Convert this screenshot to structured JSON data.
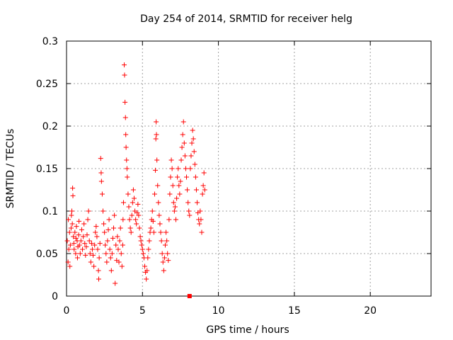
{
  "chart_data": {
    "type": "scatter",
    "title": "Day 254 of 2014, SRMTID for receiver helg",
    "xlabel": "GPS time / hours",
    "ylabel": "SRMTID / TECUs",
    "xlim": [
      0,
      24
    ],
    "ylim": [
      0,
      0.3
    ],
    "x_ticks": [
      0,
      5,
      10,
      15,
      20
    ],
    "x_tick_labels": [
      "0",
      "5",
      "10",
      "15",
      "20"
    ],
    "y_ticks": [
      0,
      0.05,
      0.1,
      0.15,
      0.2,
      0.25,
      0.3
    ],
    "y_tick_labels": [
      "0",
      "0.05",
      "0.1",
      "0.15",
      "0.2",
      "0.25",
      "0.3"
    ],
    "grid": true,
    "marker": "plus",
    "color": "#ff0000",
    "series": [
      {
        "name": "SRMTID",
        "points": [
          [
            0.05,
            0.065
          ],
          [
            0.1,
            0.04
          ],
          [
            0.12,
            0.09
          ],
          [
            0.15,
            0.055
          ],
          [
            0.2,
            0.075
          ],
          [
            0.22,
            0.035
          ],
          [
            0.25,
            0.06
          ],
          [
            0.3,
            0.08
          ],
          [
            0.32,
            0.095
          ],
          [
            0.35,
            0.1
          ],
          [
            0.38,
            0.085
          ],
          [
            0.4,
            0.127
          ],
          [
            0.42,
            0.118
          ],
          [
            0.45,
            0.07
          ],
          [
            0.48,
            0.062
          ],
          [
            0.5,
            0.055
          ],
          [
            0.55,
            0.075
          ],
          [
            0.6,
            0.05
          ],
          [
            0.62,
            0.068
          ],
          [
            0.65,
            0.082
          ],
          [
            0.7,
            0.065
          ],
          [
            0.72,
            0.045
          ],
          [
            0.75,
            0.058
          ],
          [
            0.8,
            0.072
          ],
          [
            0.82,
            0.088
          ],
          [
            0.85,
            0.06
          ],
          [
            0.9,
            0.05
          ],
          [
            0.95,
            0.065
          ],
          [
            1.0,
            0.078
          ],
          [
            1.05,
            0.055
          ],
          [
            1.1,
            0.07
          ],
          [
            1.15,
            0.085
          ],
          [
            1.2,
            0.062
          ],
          [
            1.25,
            0.048
          ],
          [
            1.3,
            0.058
          ],
          [
            1.35,
            0.072
          ],
          [
            1.4,
            0.09
          ],
          [
            1.45,
            0.1
          ],
          [
            1.5,
            0.065
          ],
          [
            1.55,
            0.05
          ],
          [
            1.6,
            0.04
          ],
          [
            1.65,
            0.062
          ],
          [
            1.7,
            0.055
          ],
          [
            1.75,
            0.048
          ],
          [
            1.8,
            0.035
          ],
          [
            1.85,
            0.06
          ],
          [
            1.9,
            0.075
          ],
          [
            1.95,
            0.082
          ],
          [
            2.0,
            0.07
          ],
          [
            2.05,
            0.055
          ],
          [
            2.1,
            0.03
          ],
          [
            2.12,
            0.02
          ],
          [
            2.15,
            0.045
          ],
          [
            2.2,
            0.062
          ],
          [
            2.25,
            0.162
          ],
          [
            2.28,
            0.145
          ],
          [
            2.3,
            0.135
          ],
          [
            2.35,
            0.12
          ],
          [
            2.4,
            0.1
          ],
          [
            2.45,
            0.085
          ],
          [
            2.5,
            0.075
          ],
          [
            2.55,
            0.06
          ],
          [
            2.6,
            0.05
          ],
          [
            2.65,
            0.04
          ],
          [
            2.7,
            0.065
          ],
          [
            2.75,
            0.078
          ],
          [
            2.8,
            0.09
          ],
          [
            2.85,
            0.055
          ],
          [
            2.9,
            0.045
          ],
          [
            2.95,
            0.03
          ],
          [
            3.0,
            0.05
          ],
          [
            3.05,
            0.068
          ],
          [
            3.1,
            0.08
          ],
          [
            3.15,
            0.095
          ],
          [
            3.2,
            0.015
          ],
          [
            3.25,
            0.06
          ],
          [
            3.3,
            0.042
          ],
          [
            3.35,
            0.07
          ],
          [
            3.4,
            0.055
          ],
          [
            3.45,
            0.04
          ],
          [
            3.5,
            0.065
          ],
          [
            3.55,
            0.08
          ],
          [
            3.6,
            0.05
          ],
          [
            3.65,
            0.035
          ],
          [
            3.7,
            0.06
          ],
          [
            3.72,
            0.09
          ],
          [
            3.75,
            0.11
          ],
          [
            3.8,
            0.272
          ],
          [
            3.82,
            0.26
          ],
          [
            3.85,
            0.228
          ],
          [
            3.88,
            0.21
          ],
          [
            3.9,
            0.19
          ],
          [
            3.92,
            0.175
          ],
          [
            3.95,
            0.16
          ],
          [
            3.98,
            0.15
          ],
          [
            4.0,
            0.14
          ],
          [
            4.05,
            0.12
          ],
          [
            4.1,
            0.105
          ],
          [
            4.15,
            0.09
          ],
          [
            4.2,
            0.08
          ],
          [
            4.25,
            0.075
          ],
          [
            4.3,
            0.095
          ],
          [
            4.35,
            0.11
          ],
          [
            4.4,
            0.125
          ],
          [
            4.45,
            0.115
          ],
          [
            4.5,
            0.1
          ],
          [
            4.55,
            0.09
          ],
          [
            4.6,
            0.085
          ],
          [
            4.65,
            0.098
          ],
          [
            4.7,
            0.108
          ],
          [
            4.75,
            0.095
          ],
          [
            4.8,
            0.08
          ],
          [
            4.85,
            0.07
          ],
          [
            4.9,
            0.065
          ],
          [
            4.95,
            0.06
          ],
          [
            5.0,
            0.055
          ],
          [
            5.05,
            0.05
          ],
          [
            5.1,
            0.045
          ],
          [
            5.15,
            0.035
          ],
          [
            5.2,
            0.028
          ],
          [
            5.25,
            0.02
          ],
          [
            5.3,
            0.03
          ],
          [
            5.35,
            0.045
          ],
          [
            5.4,
            0.055
          ],
          [
            5.45,
            0.065
          ],
          [
            5.5,
            0.075
          ],
          [
            5.55,
            0.08
          ],
          [
            5.6,
            0.09
          ],
          [
            5.65,
            0.1
          ],
          [
            5.7,
            0.088
          ],
          [
            5.75,
            0.075
          ],
          [
            5.8,
            0.12
          ],
          [
            5.85,
            0.148
          ],
          [
            5.88,
            0.185
          ],
          [
            5.9,
            0.205
          ],
          [
            5.92,
            0.19
          ],
          [
            5.95,
            0.16
          ],
          [
            6.0,
            0.13
          ],
          [
            6.05,
            0.11
          ],
          [
            6.1,
            0.095
          ],
          [
            6.15,
            0.085
          ],
          [
            6.2,
            0.075
          ],
          [
            6.25,
            0.065
          ],
          [
            6.3,
            0.05
          ],
          [
            6.35,
            0.04
          ],
          [
            6.4,
            0.03
          ],
          [
            6.45,
            0.045
          ],
          [
            6.5,
            0.06
          ],
          [
            6.55,
            0.075
          ],
          [
            6.6,
            0.065
          ],
          [
            6.65,
            0.05
          ],
          [
            6.7,
            0.042
          ],
          [
            6.75,
            0.09
          ],
          [
            6.8,
            0.12
          ],
          [
            6.85,
            0.14
          ],
          [
            6.9,
            0.16
          ],
          [
            6.95,
            0.15
          ],
          [
            7.0,
            0.13
          ],
          [
            7.05,
            0.11
          ],
          [
            7.1,
            0.1
          ],
          [
            7.15,
            0.105
          ],
          [
            7.2,
            0.09
          ],
          [
            7.25,
            0.115
          ],
          [
            7.3,
            0.14
          ],
          [
            7.35,
            0.15
          ],
          [
            7.4,
            0.13
          ],
          [
            7.45,
            0.12
          ],
          [
            7.5,
            0.135
          ],
          [
            7.55,
            0.16
          ],
          [
            7.6,
            0.175
          ],
          [
            7.65,
            0.19
          ],
          [
            7.7,
            0.205
          ],
          [
            7.75,
            0.18
          ],
          [
            7.8,
            0.165
          ],
          [
            7.85,
            0.15
          ],
          [
            7.9,
            0.14
          ],
          [
            7.95,
            0.125
          ],
          [
            8.0,
            0.11
          ],
          [
            8.05,
            0.1
          ],
          [
            8.1,
            0.095
          ],
          [
            8.15,
            0.15
          ],
          [
            8.2,
            0.165
          ],
          [
            8.25,
            0.18
          ],
          [
            8.3,
            0.195
          ],
          [
            8.35,
            0.185
          ],
          [
            8.4,
            0.17
          ],
          [
            8.45,
            0.155
          ],
          [
            8.5,
            0.14
          ],
          [
            8.55,
            0.125
          ],
          [
            8.6,
            0.11
          ],
          [
            8.65,
            0.098
          ],
          [
            8.7,
            0.09
          ],
          [
            8.75,
            0.085
          ],
          [
            8.8,
            0.1
          ],
          [
            8.85,
            0.09
          ],
          [
            8.9,
            0.075
          ],
          [
            8.95,
            0.12
          ],
          [
            9.0,
            0.13
          ],
          [
            9.05,
            0.145
          ],
          [
            9.1,
            0.125
          ]
        ]
      }
    ],
    "annotations": [
      {
        "type": "zero-marker",
        "x": 8.1,
        "y": 0.0
      }
    ]
  }
}
